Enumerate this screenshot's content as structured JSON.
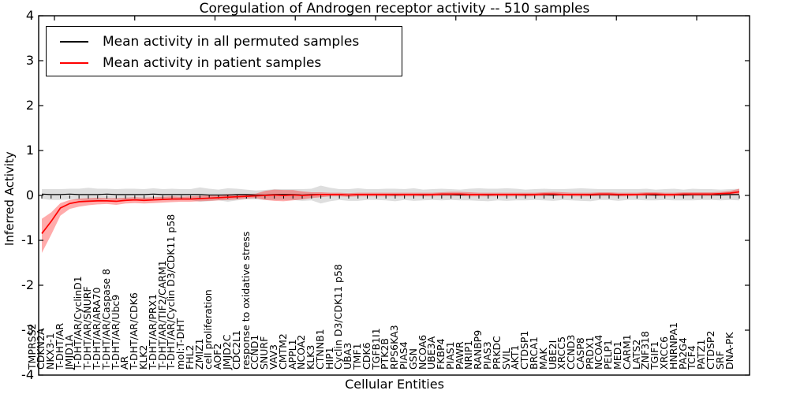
{
  "chart_data": {
    "type": "line",
    "title": "Coregulation of Androgen receptor activity -- 510 samples",
    "xlabel": "Cellular Entities",
    "ylabel": "Inferred Activity",
    "ylim": [
      -4,
      4
    ],
    "yticks": [
      4,
      3,
      2,
      1,
      0,
      -1,
      -2,
      -3,
      -4
    ],
    "grid": false,
    "legend_position": "upper left",
    "categories": [
      "TMPRSS2",
      "CDKN2A",
      "NKX3-1",
      "T-DHT/AR",
      "JMJD1A",
      "T-DHT/AR/CyclinD1",
      "T-DHT/AR/SNURF",
      "T-DHT/AR/ARA70",
      "T-DHT/AR/Caspase 8",
      "T-DHT/AR/Ubc9",
      "AR",
      "T-DHT/AR/CDK6",
      "KLK2",
      "T-DHT/AR/PRX1",
      "T-DHT/AR/TIF2/CARM1",
      "T-DHT/AR/Cyclin D3/CDK11 p58",
      "mol:T-DHT",
      "FHL2",
      "ZMIZ1",
      "cell proliferation",
      "AOF2",
      "JMJD2C",
      "CDC2L1",
      "response to oxidative stress",
      "CCND1",
      "SNURF",
      "VAV3",
      "CMTM2",
      "APPL1",
      "NCOA2",
      "KLK3",
      "CTNNB1",
      "HIP1",
      "Cyclin D3/CDK11 p58",
      "UBA3",
      "TMF1",
      "CDK6",
      "TGFB1I1",
      "PTK2B",
      "RPS6KA3",
      "PIAS4",
      "GSN",
      "NCOA6",
      "UBE3A",
      "FKBP4",
      "PIAS1",
      "PAWR",
      "NRIP1",
      "RANBP9",
      "PIAS3",
      "PRKDC",
      "SVIL",
      "AKT1",
      "CTDSP1",
      "BRCA1",
      "MAK",
      "UBE2I",
      "XRCC5",
      "CCND3",
      "CASP8",
      "PRDX1",
      "NCOA4",
      "PELP1",
      "MED1",
      "CARM1",
      "LATS2",
      "ZNF318",
      "TGIF1",
      "XRCC6",
      "HNRNPA1",
      "PA2G4",
      "TCF4",
      "PATZ1",
      "CTDSP2",
      "SRF",
      "DNA-PK"
    ],
    "series": [
      {
        "name": "Mean activity in all permuted samples",
        "color": "#000000",
        "band_color": "rgba(0,0,0,0.13)",
        "values": [
          0.03,
          0.02,
          0.02,
          0.03,
          0.02,
          0.02,
          0.02,
          0.03,
          0.02,
          0.02,
          0.02,
          0.02,
          0.03,
          0.02,
          0.02,
          0.02,
          0.02,
          0.02,
          0.01,
          0.01,
          0.01,
          0.02,
          0.02,
          0.01,
          0.01,
          0.02,
          0.02,
          0.02,
          0.01,
          0.02,
          0.02,
          0.02,
          0.02,
          0.01,
          0.02,
          0.02,
          0.02,
          0.02,
          0.01,
          0.02,
          0.02,
          0.01,
          0.02,
          0.02,
          0.02,
          0.01,
          0.02,
          0.02,
          0.01,
          0.02,
          0.02,
          0.02,
          0.01,
          0.02,
          0.02,
          0.01,
          0.02,
          0.02,
          0.02,
          0.01,
          0.02,
          0.02,
          0.01,
          0.02,
          0.02,
          0.02,
          0.01,
          0.02,
          0.02,
          0.01,
          0.02,
          0.02,
          0.02,
          0.01,
          0.02,
          0.02
        ],
        "band_upper": [
          0.14,
          0.14,
          0.14,
          0.15,
          0.15,
          0.17,
          0.15,
          0.15,
          0.14,
          0.15,
          0.15,
          0.14,
          0.16,
          0.14,
          0.15,
          0.14,
          0.14,
          0.18,
          0.15,
          0.13,
          0.16,
          0.15,
          0.13,
          0.11,
          0.12,
          0.14,
          0.14,
          0.14,
          0.14,
          0.15,
          0.22,
          0.17,
          0.14,
          0.14,
          0.16,
          0.14,
          0.14,
          0.15,
          0.15,
          0.14,
          0.16,
          0.13,
          0.14,
          0.15,
          0.14,
          0.13,
          0.15,
          0.16,
          0.15,
          0.15,
          0.16,
          0.15,
          0.13,
          0.14,
          0.15,
          0.14,
          0.14,
          0.15,
          0.16,
          0.15,
          0.14,
          0.14,
          0.14,
          0.14,
          0.14,
          0.15,
          0.13,
          0.14,
          0.15,
          0.13,
          0.15,
          0.14,
          0.14,
          0.13,
          0.14,
          0.15
        ],
        "band_lower": [
          -0.08,
          -0.1,
          -0.1,
          -0.09,
          -0.11,
          -0.13,
          -0.11,
          -0.09,
          -0.1,
          -0.11,
          -0.11,
          -0.1,
          -0.1,
          -0.1,
          -0.11,
          -0.1,
          -0.1,
          -0.14,
          -0.13,
          -0.11,
          -0.14,
          -0.11,
          -0.09,
          -0.09,
          -0.1,
          -0.1,
          -0.1,
          -0.1,
          -0.12,
          -0.11,
          -0.18,
          -0.13,
          -0.1,
          -0.12,
          -0.12,
          -0.1,
          -0.1,
          -0.11,
          -0.13,
          -0.1,
          -0.12,
          -0.11,
          -0.1,
          -0.11,
          -0.1,
          -0.11,
          -0.11,
          -0.12,
          -0.13,
          -0.11,
          -0.12,
          -0.11,
          -0.11,
          -0.1,
          -0.11,
          -0.12,
          -0.1,
          -0.11,
          -0.12,
          -0.13,
          -0.1,
          -0.1,
          -0.12,
          -0.1,
          -0.1,
          -0.11,
          -0.11,
          -0.1,
          -0.11,
          -0.11,
          -0.11,
          -0.1,
          -0.1,
          -0.11,
          -0.1,
          -0.11
        ]
      },
      {
        "name": "Mean activity in patient samples",
        "color": "#ff0000",
        "band_color": "rgba(255,0,0,0.33)",
        "values": [
          -0.85,
          -0.58,
          -0.28,
          -0.18,
          -0.14,
          -0.13,
          -0.12,
          -0.12,
          -0.13,
          -0.11,
          -0.1,
          -0.11,
          -0.1,
          -0.09,
          -0.08,
          -0.08,
          -0.08,
          -0.07,
          -0.06,
          -0.05,
          -0.04,
          -0.03,
          -0.02,
          -0.01,
          0.0,
          0.01,
          0.0,
          0.01,
          0.0,
          0.01,
          0.02,
          0.02,
          0.02,
          0.01,
          0.02,
          0.02,
          0.02,
          0.02,
          0.02,
          0.02,
          0.02,
          0.02,
          0.02,
          0.03,
          0.03,
          0.03,
          0.02,
          0.02,
          0.02,
          0.02,
          0.02,
          0.02,
          0.02,
          0.02,
          0.03,
          0.03,
          0.02,
          0.02,
          0.02,
          0.02,
          0.03,
          0.03,
          0.02,
          0.02,
          0.02,
          0.03,
          0.03,
          0.02,
          0.02,
          0.03,
          0.03,
          0.03,
          0.03,
          0.04,
          0.05,
          0.08
        ],
        "band_upper": [
          -0.52,
          -0.38,
          -0.17,
          -0.1,
          -0.07,
          -0.06,
          -0.05,
          -0.06,
          -0.06,
          -0.05,
          -0.04,
          -0.05,
          -0.04,
          -0.03,
          -0.02,
          -0.03,
          -0.02,
          -0.01,
          0.0,
          0.01,
          0.03,
          0.02,
          0.03,
          0.04,
          0.1,
          0.13,
          0.12,
          0.12,
          0.09,
          0.07,
          0.07,
          0.06,
          0.06,
          0.05,
          0.06,
          0.06,
          0.06,
          0.06,
          0.06,
          0.06,
          0.06,
          0.06,
          0.06,
          0.07,
          0.08,
          0.08,
          0.07,
          0.06,
          0.06,
          0.06,
          0.06,
          0.06,
          0.06,
          0.06,
          0.07,
          0.08,
          0.07,
          0.06,
          0.06,
          0.06,
          0.07,
          0.07,
          0.06,
          0.06,
          0.06,
          0.07,
          0.07,
          0.06,
          0.06,
          0.07,
          0.07,
          0.07,
          0.07,
          0.08,
          0.1,
          0.15
        ],
        "band_lower": [
          -1.28,
          -0.88,
          -0.45,
          -0.3,
          -0.25,
          -0.22,
          -0.2,
          -0.19,
          -0.21,
          -0.18,
          -0.17,
          -0.18,
          -0.17,
          -0.16,
          -0.15,
          -0.14,
          -0.14,
          -0.13,
          -0.12,
          -0.11,
          -0.1,
          -0.09,
          -0.07,
          -0.06,
          -0.1,
          -0.12,
          -0.13,
          -0.11,
          -0.09,
          -0.06,
          -0.04,
          -0.02,
          -0.02,
          -0.03,
          -0.02,
          -0.02,
          -0.02,
          -0.02,
          -0.02,
          -0.02,
          -0.02,
          -0.02,
          -0.02,
          -0.01,
          -0.01,
          -0.01,
          -0.02,
          -0.02,
          -0.02,
          -0.02,
          -0.02,
          -0.02,
          -0.02,
          -0.02,
          -0.01,
          -0.01,
          -0.01,
          -0.02,
          -0.02,
          -0.02,
          -0.01,
          -0.01,
          -0.02,
          -0.02,
          -0.01,
          -0.01,
          -0.01,
          -0.02,
          -0.02,
          -0.01,
          -0.01,
          -0.01,
          -0.01,
          0.0,
          0.0,
          0.01
        ]
      }
    ]
  }
}
